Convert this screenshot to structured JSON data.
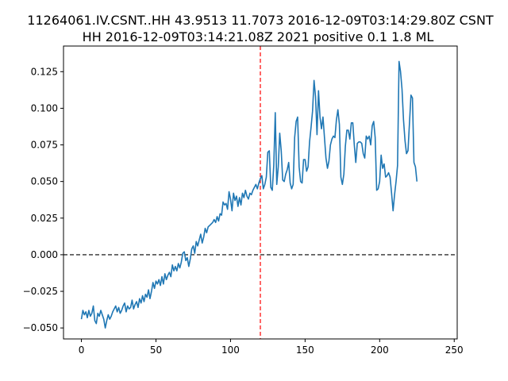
{
  "chart_data": {
    "type": "line",
    "title_lines": [
      "11264061.IV.CSNT..HH 43.9513 11.7073 2016-12-09T03:14:29.80Z CSNT",
      "HH 2016-12-09T03:14:21.08Z 2021 positive 0.1 1.8 ML"
    ],
    "xlabel": "",
    "ylabel": "",
    "xlim": [
      -12,
      252
    ],
    "ylim": [
      -0.0575,
      0.1425
    ],
    "x_ticks": [
      0,
      50,
      100,
      150,
      200,
      250
    ],
    "x_tick_labels": [
      "0",
      "50",
      "100",
      "150",
      "200",
      "250"
    ],
    "y_ticks": [
      -0.05,
      -0.025,
      0.0,
      0.025,
      0.05,
      0.075,
      0.1,
      0.125
    ],
    "y_tick_labels": [
      "−0.050",
      "−0.025",
      "0.000",
      "0.025",
      "0.050",
      "0.075",
      "0.100",
      "0.125"
    ],
    "grid": false,
    "hline": {
      "y": 0.0,
      "color": "#000000",
      "style": "dashed"
    },
    "vline": {
      "x": 120,
      "color": "#ff0000",
      "style": "dashed"
    },
    "series": [
      {
        "color": "#1f77b4",
        "x_start": 0,
        "x_step": 1,
        "values": [
          -0.044,
          -0.038,
          -0.041,
          -0.039,
          -0.043,
          -0.038,
          -0.042,
          -0.04,
          -0.035,
          -0.045,
          -0.047,
          -0.04,
          -0.042,
          -0.038,
          -0.041,
          -0.044,
          -0.05,
          -0.045,
          -0.041,
          -0.044,
          -0.042,
          -0.039,
          -0.037,
          -0.035,
          -0.039,
          -0.036,
          -0.04,
          -0.038,
          -0.035,
          -0.033,
          -0.039,
          -0.035,
          -0.037,
          -0.036,
          -0.031,
          -0.037,
          -0.034,
          -0.032,
          -0.036,
          -0.03,
          -0.033,
          -0.028,
          -0.032,
          -0.027,
          -0.029,
          -0.024,
          -0.03,
          -0.025,
          -0.019,
          -0.023,
          -0.018,
          -0.02,
          -0.017,
          -0.021,
          -0.015,
          -0.02,
          -0.013,
          -0.017,
          -0.014,
          -0.012,
          -0.015,
          -0.007,
          -0.011,
          -0.008,
          -0.011,
          -0.006,
          -0.009,
          -0.005,
          0.001,
          0.002,
          -0.004,
          -0.002,
          -0.008,
          -0.003,
          0.004,
          0.006,
          0.001,
          0.009,
          0.006,
          0.01,
          0.014,
          0.008,
          0.012,
          0.018,
          0.015,
          0.019,
          0.02,
          0.021,
          0.022,
          0.024,
          0.022,
          0.026,
          0.023,
          0.028,
          0.027,
          0.036,
          0.034,
          0.035,
          0.031,
          0.043,
          0.038,
          0.03,
          0.042,
          0.037,
          0.04,
          0.033,
          0.039,
          0.034,
          0.042,
          0.039,
          0.044,
          0.04,
          0.038,
          0.042,
          0.041,
          0.044,
          0.046,
          0.048,
          0.045,
          0.049,
          0.052,
          0.054,
          0.045,
          0.048,
          0.053,
          0.07,
          0.071,
          0.046,
          0.044,
          0.061,
          0.097,
          0.048,
          0.06,
          0.083,
          0.071,
          0.051,
          0.05,
          0.055,
          0.058,
          0.063,
          0.049,
          0.045,
          0.048,
          0.08,
          0.091,
          0.094,
          0.06,
          0.05,
          0.049,
          0.065,
          0.065,
          0.057,
          0.06,
          0.077,
          0.087,
          0.098,
          0.119,
          0.108,
          0.082,
          0.112,
          0.094,
          0.086,
          0.094,
          0.08,
          0.066,
          0.059,
          0.064,
          0.075,
          0.079,
          0.081,
          0.08,
          0.092,
          0.099,
          0.089,
          0.053,
          0.048,
          0.055,
          0.074,
          0.085,
          0.085,
          0.079,
          0.09,
          0.09,
          0.075,
          0.063,
          0.076,
          0.077,
          0.077,
          0.076,
          0.069,
          0.066,
          0.081,
          0.079,
          0.081,
          0.075,
          0.088,
          0.091,
          0.08,
          0.044,
          0.045,
          0.05,
          0.068,
          0.059,
          0.062,
          0.053,
          0.054,
          0.056,
          0.053,
          0.042,
          0.03,
          0.041,
          0.05,
          0.061,
          0.132,
          0.125,
          0.113,
          0.092,
          0.078,
          0.069,
          0.071,
          0.09,
          0.109,
          0.107,
          0.063,
          0.06,
          0.05
        ]
      }
    ]
  }
}
